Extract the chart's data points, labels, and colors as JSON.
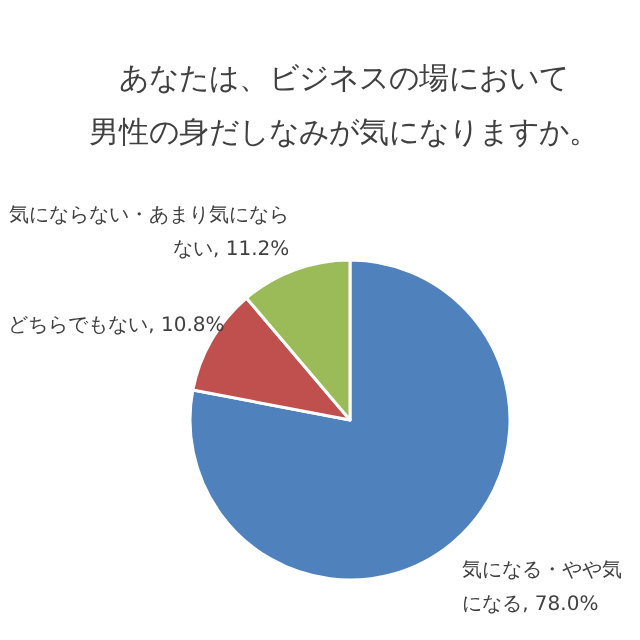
{
  "chart_data": {
    "type": "pie",
    "title": "あなたは、ビジネスの場において",
    "subtitle": "男性の身だしなみが気になりますか。",
    "categories": [
      "気になる・やや気になる",
      "どちらでもない",
      "気にならない・あまり気にならない"
    ],
    "values": [
      78.0,
      10.8,
      11.2
    ],
    "value_labels": [
      "78.0%",
      "10.8%",
      "11.2%"
    ],
    "colors": [
      "#4f81bd",
      "#c0504d",
      "#9bbb59"
    ],
    "data_labels": true
  }
}
